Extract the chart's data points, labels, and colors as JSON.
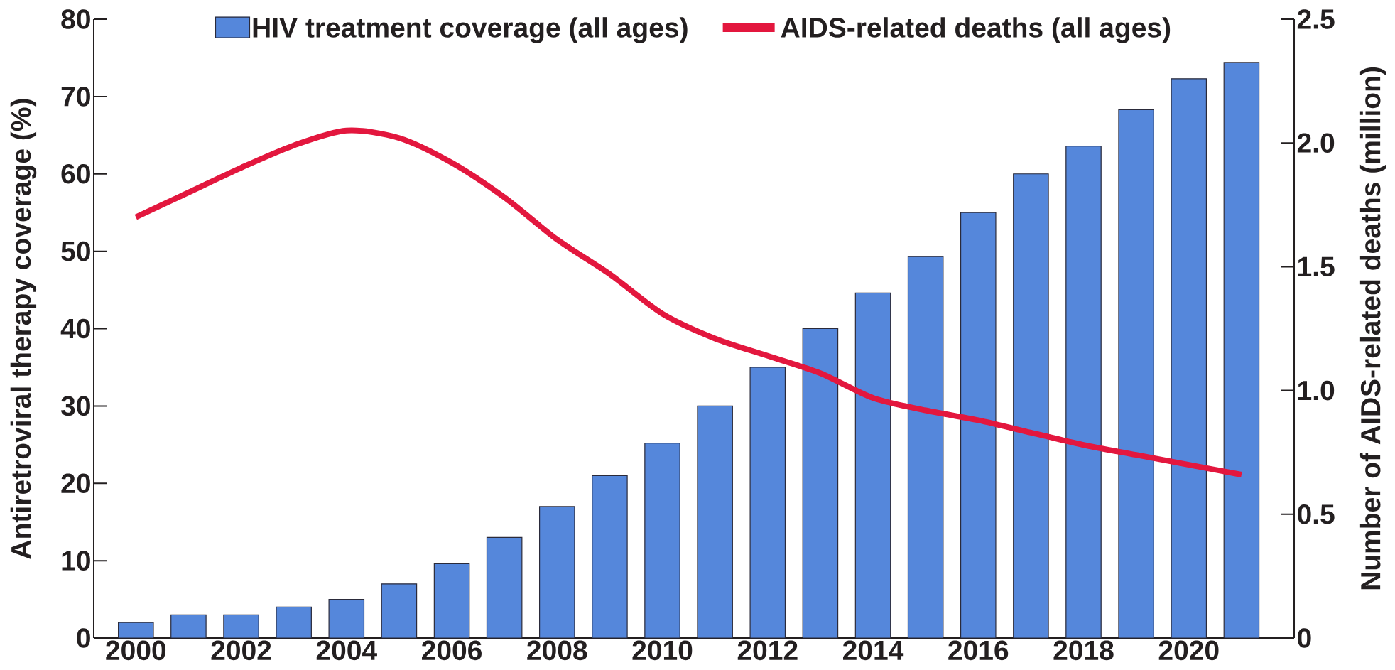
{
  "chart_data": {
    "type": "bar",
    "x": [
      2000,
      2001,
      2002,
      2003,
      2004,
      2005,
      2006,
      2007,
      2008,
      2009,
      2010,
      2011,
      2012,
      2013,
      2014,
      2015,
      2016,
      2017,
      2018,
      2019,
      2020,
      2021
    ],
    "xlim": [
      1999.2,
      2022.0
    ],
    "xticks": [
      2000,
      2002,
      2004,
      2006,
      2008,
      2010,
      2012,
      2014,
      2016,
      2018,
      2020
    ],
    "ylabel": "Antiretroviral therapy coverage (%)",
    "ylim": [
      0,
      80
    ],
    "yticks": [
      0,
      10,
      20,
      30,
      40,
      50,
      60,
      70,
      80
    ],
    "y2label": "Number of AIDS-related deaths (million)",
    "y2lim": [
      0,
      2.5
    ],
    "y2ticks": [
      0,
      0.5,
      {
        "value": 1,
        "label": "1.0"
      },
      1.5,
      {
        "value": 2,
        "label": "2.0"
      },
      2.5
    ],
    "legend": "top",
    "series": [
      {
        "name": "HIV treatment coverage (all ages)",
        "color": "#5587db",
        "values": [
          2,
          3,
          3,
          4,
          5,
          7,
          9.6,
          13,
          17,
          21,
          25.2,
          30,
          35,
          40,
          44.6,
          49.3,
          55,
          60,
          63.6,
          68.3,
          72.3,
          74.4
        ]
      },
      {
        "name": "AIDS-related deaths (all ages)",
        "type": "line",
        "axis": "y2",
        "color": "#e3173e",
        "values": [
          1.7,
          1.8,
          1.9,
          1.99,
          2.05,
          2.02,
          1.92,
          1.78,
          1.61,
          1.47,
          1.31,
          1.21,
          1.14,
          1.07,
          0.97,
          0.92,
          0.88,
          0.83,
          0.78,
          0.74,
          0.7,
          0.66
        ]
      }
    ]
  }
}
